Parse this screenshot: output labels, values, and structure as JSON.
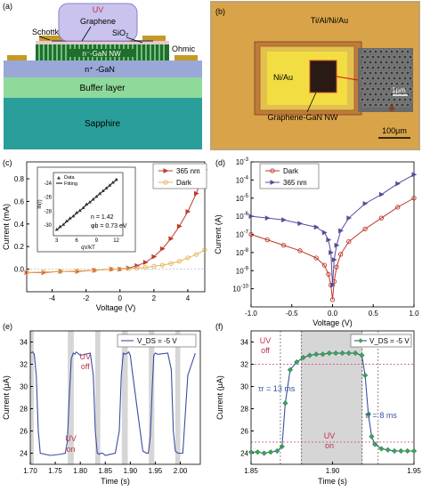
{
  "panel_a": {
    "letter": "(a)",
    "labels": {
      "uv": "UV",
      "graphene": "Graphene",
      "schottky": "Schottky",
      "sio2": "SiO₂",
      "ngan_nw": "n⁻-GaN NW",
      "nplus_gan": "n⁺ -GaN",
      "ohmic": "Ohmic",
      "buffer": "Buffer layer",
      "sapphire": "Sapphire"
    }
  },
  "panel_b": {
    "letter": "(b)",
    "labels": {
      "tialniau": "Ti/Al/Ni/Au",
      "niau": "Ni/Au",
      "inset_scale": "1μm",
      "graphene_nw": "Graphene-GaN NW",
      "scale": "100μm"
    }
  },
  "chart_data": [
    {
      "id": "c",
      "letter": "(c)",
      "type": "line",
      "xlabel": "Voltage (V)",
      "ylabel": "Current (mA)",
      "xlim": [
        -5.5,
        5
      ],
      "ylim": [
        -0.2,
        0.95
      ],
      "xticks": [
        -4,
        -2,
        0,
        2,
        4
      ],
      "yticks": [
        0.0,
        0.2,
        0.4,
        0.6,
        0.8
      ],
      "ytick_labels": [
        "0.0",
        "0.2",
        "0.4",
        "0.6",
        "0.8"
      ],
      "legend": "top-right",
      "series": [
        {
          "name": "365 nm",
          "color": "#c0392b",
          "marker": "triangle-right",
          "x": [
            -5.5,
            -4.5,
            -3.5,
            -2.5,
            -1.5,
            -0.5,
            0,
            0.5,
            1,
            1.5,
            2,
            2.5,
            3,
            3.5,
            4,
            4.5,
            5
          ],
          "y": [
            -0.03,
            -0.03,
            -0.02,
            -0.02,
            -0.01,
            0,
            0,
            0.01,
            0.03,
            0.06,
            0.11,
            0.18,
            0.27,
            0.38,
            0.51,
            0.67,
            0.88
          ]
        },
        {
          "name": "Dark",
          "color": "#e6b35a",
          "marker": "circle",
          "x": [
            -5.5,
            -4.5,
            -3.5,
            -2.5,
            -1.5,
            -0.5,
            0,
            0.5,
            1,
            1.5,
            2,
            2.5,
            3,
            3.5,
            4,
            4.5,
            5
          ],
          "y": [
            -0.03,
            -0.025,
            -0.02,
            -0.015,
            -0.01,
            0,
            0,
            0.005,
            0.01,
            0.015,
            0.025,
            0.035,
            0.05,
            0.07,
            0.1,
            0.13,
            0.17
          ]
        }
      ],
      "inset": {
        "ylabel": "ln(I)",
        "xlabel": "qV/kT",
        "xticks": [
          3,
          6,
          9,
          12
        ],
        "yticks": [
          -24,
          -26,
          -28,
          -30
        ],
        "xlim": [
          2.5,
          13
        ],
        "ylim": [
          -31.5,
          -22.5
        ],
        "legend": [
          "Data",
          "Fitting"
        ],
        "n_label": "n = 1.42",
        "phi_label": "φb = 0.73 eV",
        "data_x": [
          3,
          3.5,
          4,
          4.5,
          5,
          5.5,
          6,
          6.5,
          7,
          7.5,
          8,
          8.5,
          9,
          9.5,
          10,
          10.5,
          11,
          11.5,
          12
        ],
        "data_y": [
          -30.6,
          -30.2,
          -29.9,
          -29.4,
          -29.0,
          -28.7,
          -28.2,
          -27.9,
          -27.5,
          -27.0,
          -26.7,
          -26.3,
          -25.9,
          -25.5,
          -25.1,
          -24.7,
          -24.3,
          -23.9,
          -23.5
        ],
        "fit": [
          [
            3,
            -30.7
          ],
          [
            12.2,
            -23.4
          ]
        ]
      }
    },
    {
      "id": "d",
      "letter": "(d)",
      "type": "line",
      "xlabel": "Voltage (V)",
      "ylabel": "Current (A)",
      "xlim": [
        -1.0,
        1.0
      ],
      "ylog": true,
      "ylim_exp": [
        -11,
        -3
      ],
      "xticks": [
        -1.0,
        -0.5,
        0.0,
        0.5,
        1.0
      ],
      "xtick_labels": [
        "-1.0",
        "-0.5",
        "0.0",
        "0.5",
        "1.0"
      ],
      "ytick_exps": [
        -10,
        -9,
        -8,
        -7,
        -6,
        -5,
        -4,
        -3
      ],
      "legend": "top-left",
      "series": [
        {
          "name": "Dark",
          "color": "#c0392b",
          "marker": "circle",
          "x": [
            -1,
            -0.8,
            -0.6,
            -0.4,
            -0.2,
            -0.1,
            -0.05,
            -0.02,
            0,
            0.02,
            0.05,
            0.1,
            0.2,
            0.4,
            0.6,
            0.8,
            1
          ],
          "y_exp": [
            -7.0,
            -7.3,
            -7.6,
            -7.9,
            -8.3,
            -8.7,
            -9.2,
            -9.8,
            -10.6,
            -9.6,
            -8.8,
            -8.1,
            -7.4,
            -6.7,
            -6.1,
            -5.5,
            -5.0
          ]
        },
        {
          "name": "365 nm",
          "color": "#5b4a9b",
          "marker": "triangle-right",
          "x": [
            -1,
            -0.8,
            -0.6,
            -0.4,
            -0.2,
            -0.1,
            -0.05,
            -0.02,
            0,
            0.02,
            0.05,
            0.1,
            0.2,
            0.4,
            0.6,
            0.8,
            1
          ],
          "y_exp": [
            -6.0,
            -6.1,
            -6.2,
            -6.4,
            -6.6,
            -6.9,
            -7.3,
            -8.0,
            -9.8,
            -8.4,
            -7.6,
            -6.8,
            -6.1,
            -5.3,
            -4.8,
            -4.2,
            -3.7
          ]
        }
      ]
    },
    {
      "id": "e",
      "letter": "(e)",
      "type": "line",
      "xlabel": "Time (s)",
      "ylabel": "Current (μA)",
      "xlim": [
        1.7,
        2.04
      ],
      "ylim": [
        23,
        35
      ],
      "xticks": [
        1.7,
        1.8,
        1.9,
        2.0
      ],
      "xtick_labels": [
        "1.70",
        "1.75",
        "1.80",
        "1.85",
        "1.90",
        "1.95",
        "2.00"
      ],
      "xtick_values": [
        1.7,
        1.75,
        1.8,
        1.85,
        1.9,
        1.95,
        2.0
      ],
      "yticks": [
        24,
        26,
        28,
        30,
        32,
        34
      ],
      "legend_label": "V_DS = -5 V",
      "uv_off_label": [
        "UV",
        "off"
      ],
      "uv_on_label": [
        "UV",
        "on"
      ],
      "on_intervals": [
        [
          1.7,
          1.707
        ],
        [
          1.775,
          1.787
        ],
        [
          1.83,
          1.84
        ],
        [
          1.883,
          1.895
        ],
        [
          1.937,
          1.948
        ],
        [
          1.99,
          2.0
        ]
      ],
      "series": [
        {
          "name": "V_DS = -5 V",
          "color": "#3a4fa0",
          "x": [
            1.7,
            1.705,
            1.708,
            1.712,
            1.716,
            1.72,
            1.74,
            1.76,
            1.77,
            1.774,
            1.778,
            1.782,
            1.786,
            1.789,
            1.792,
            1.795,
            1.8,
            1.82,
            1.826,
            1.83,
            1.834,
            1.838,
            1.841,
            1.845,
            1.85,
            1.87,
            1.878,
            1.882,
            1.886,
            1.89,
            1.894,
            1.897,
            1.9,
            1.905,
            1.925,
            1.932,
            1.936,
            1.94,
            1.944,
            1.947,
            1.95,
            1.955,
            1.975,
            1.982,
            1.986,
            1.99,
            1.995,
            2.0,
            2.005,
            2.015,
            2.03
          ],
          "y": [
            33.0,
            33.1,
            32.9,
            31.0,
            26.0,
            24.0,
            23.8,
            23.9,
            24.0,
            25.0,
            29.0,
            32.5,
            33.0,
            32.9,
            33.1,
            33.0,
            32.8,
            33.0,
            31.0,
            26.0,
            24.0,
            23.9,
            24.0,
            24.0,
            23.8,
            24.0,
            26.0,
            31.0,
            33.0,
            32.9,
            33.0,
            33.1,
            32.8,
            31.0,
            24.2,
            24.0,
            24.0,
            25.5,
            30.0,
            32.8,
            33.0,
            32.9,
            33.0,
            31.5,
            26.0,
            24.2,
            24.0,
            24.0,
            24.0,
            31.0,
            33.0
          ]
        }
      ]
    },
    {
      "id": "f",
      "letter": "(f)",
      "type": "line",
      "xlabel": "Time (s)",
      "ylabel": "Current (μA)",
      "xlim": [
        1.85,
        1.95
      ],
      "ylim": [
        23,
        35
      ],
      "xticks": [
        1.85,
        1.9,
        1.95
      ],
      "xtick_labels": [
        "1.85",
        "1.90",
        "1.95"
      ],
      "yticks": [
        24,
        26,
        28,
        30,
        32,
        34
      ],
      "legend_label": "V_DS = -5 V",
      "uv_off_label": [
        "UV",
        "off"
      ],
      "uv_on_label": [
        "UV",
        "on"
      ],
      "tau_r": "τr = 13 ms",
      "tau_f": "τf = 8 ms",
      "on_interval": [
        1.8805,
        1.9185
      ],
      "hlines": [
        32.0,
        25.0
      ],
      "vlines": [
        1.868,
        1.881,
        1.918,
        1.928
      ],
      "series": [
        {
          "name": "V_DS = -5 V",
          "color": "#3a4fa0",
          "marker_color": "#3aa55a",
          "x": [
            1.85,
            1.854,
            1.858,
            1.862,
            1.866,
            1.869,
            1.871,
            1.874,
            1.878,
            1.882,
            1.886,
            1.89,
            1.894,
            1.898,
            1.902,
            1.906,
            1.91,
            1.914,
            1.918,
            1.92,
            1.922,
            1.924,
            1.926,
            1.93,
            1.934,
            1.938,
            1.942,
            1.946,
            1.95
          ],
          "y": [
            24.1,
            24.1,
            24.0,
            24.1,
            24.2,
            24.6,
            28.5,
            31.5,
            32.2,
            32.6,
            32.8,
            32.9,
            32.9,
            33.0,
            33.0,
            33.0,
            33.0,
            33.0,
            32.8,
            31.0,
            27.5,
            25.5,
            24.8,
            24.4,
            24.3,
            24.2,
            24.2,
            24.2,
            24.2
          ]
        }
      ]
    }
  ]
}
